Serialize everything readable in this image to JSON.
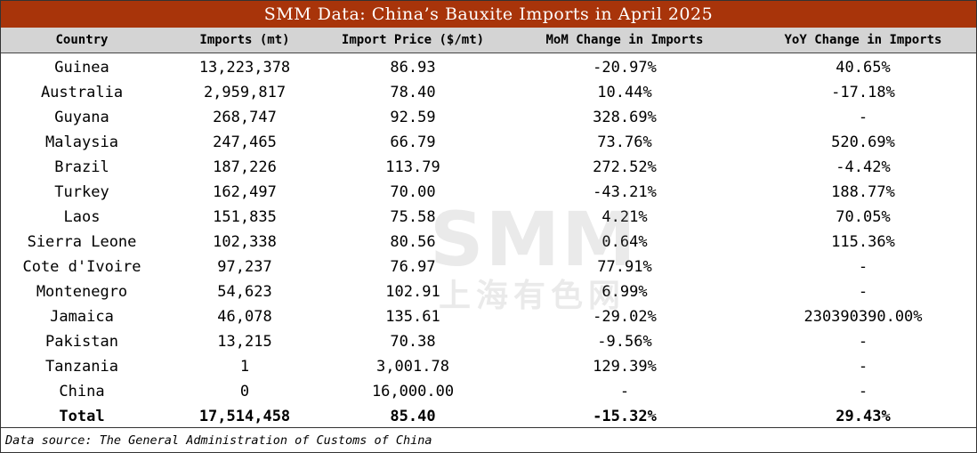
{
  "title": "SMM Data: China’s Bauxite Imports in April 2025",
  "columns": [
    "Country",
    "Imports (mt)",
    "Import Price ($/mt)",
    "MoM Change in Imports",
    "YoY Change in Imports"
  ],
  "rows": [
    [
      "Guinea",
      "13,223,378",
      "86.93",
      "-20.97%",
      "40.65%"
    ],
    [
      "Australia",
      "2,959,817",
      "78.40",
      "10.44%",
      "-17.18%"
    ],
    [
      "Guyana",
      "268,747",
      "92.59",
      "328.69%",
      "-"
    ],
    [
      "Malaysia",
      "247,465",
      "66.79",
      "73.76%",
      "520.69%"
    ],
    [
      "Brazil",
      "187,226",
      "113.79",
      "272.52%",
      "-4.42%"
    ],
    [
      "Turkey",
      "162,497",
      "70.00",
      "-43.21%",
      "188.77%"
    ],
    [
      "Laos",
      "151,835",
      "75.58",
      "4.21%",
      "70.05%"
    ],
    [
      "Sierra Leone",
      "102,338",
      "80.56",
      "0.64%",
      "115.36%"
    ],
    [
      "Cote d'Ivoire",
      "97,237",
      "76.97",
      "77.91%",
      "-"
    ],
    [
      "Montenegro",
      "54,623",
      "102.91",
      "6.99%",
      "-"
    ],
    [
      "Jamaica",
      "46,078",
      "135.61",
      "-29.02%",
      "230390390.00%"
    ],
    [
      "Pakistan",
      "13,215",
      "70.38",
      "-9.56%",
      "-"
    ],
    [
      "Tanzania",
      "1",
      "3,001.78",
      "129.39%",
      "-"
    ],
    [
      "China",
      "0",
      "16,000.00",
      "-",
      "-"
    ]
  ],
  "total": [
    "Total",
    "17,514,458",
    "85.40",
    "-15.32%",
    "29.43%"
  ],
  "source": "Data source: The General Administration of Customs of China",
  "watermark": {
    "latin": "SMM",
    "cjk": "上海有色网"
  },
  "colors": {
    "title_bg": "#a8340a",
    "title_text": "#ffffff",
    "header_bg": "#d4d4d4"
  }
}
